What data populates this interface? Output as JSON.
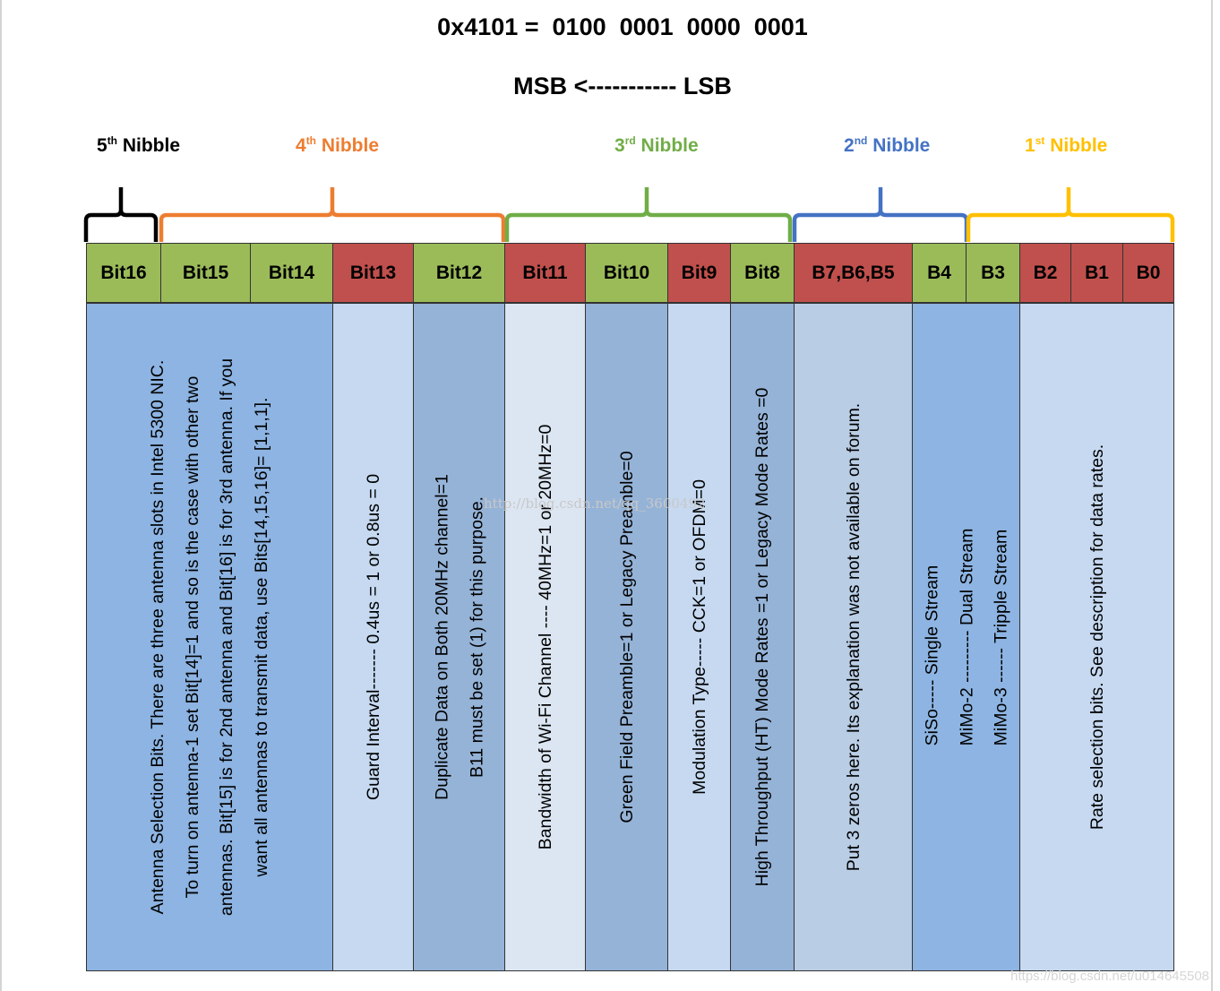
{
  "header": {
    "hex_line": "0x4101 =  0100  0001  0000  0001",
    "direction": "MSB <----------- LSB"
  },
  "nibbles": [
    {
      "ord": "5",
      "sup": "th",
      "word": " Nibble",
      "color": "#000000"
    },
    {
      "ord": "4",
      "sup": "th",
      "word": " Nibble",
      "color": "#ED7D31"
    },
    {
      "ord": "3",
      "sup": "rd",
      "word": " Nibble",
      "color": "#70AD47"
    },
    {
      "ord": "2",
      "sup": "nd",
      "word": " Nibble",
      "color": "#4472C4"
    },
    {
      "ord": "1",
      "sup": "st",
      "word": " Nibble",
      "color": "#FFC000"
    }
  ],
  "colors": {
    "header_green": "#9BBB59",
    "header_red": "#C0504D",
    "body_blue": "#8DB4E2",
    "body_light": "#C6D9F1",
    "body_mid": "#95B3D7",
    "body_pale": "#DCE6F2",
    "body_steel": "#B9CDE5"
  },
  "bits": [
    {
      "label": "Bit16",
      "fill": "green"
    },
    {
      "label": "Bit15",
      "fill": "green"
    },
    {
      "label": "Bit14",
      "fill": "green"
    },
    {
      "label": "Bit13",
      "fill": "red"
    },
    {
      "label": "Bit12",
      "fill": "green"
    },
    {
      "label": "Bit11",
      "fill": "red"
    },
    {
      "label": "Bit10",
      "fill": "green"
    },
    {
      "label": "Bit9",
      "fill": "red"
    },
    {
      "label": "Bit8",
      "fill": "green"
    },
    {
      "label": "B7,B6,B5",
      "fill": "red"
    },
    {
      "label": "B4",
      "fill": "green"
    },
    {
      "label": "B3",
      "fill": "green"
    },
    {
      "label": "B2",
      "fill": "red"
    },
    {
      "label": "B1",
      "fill": "red"
    },
    {
      "label": "B0",
      "fill": "red"
    }
  ],
  "descriptions": {
    "antenna": [
      "Antenna Selection Bits. There are three antenna slots in Intel 5300 NIC.",
      "To turn on antenna-1 set Bit[14]=1 and so is the case with other two",
      "antennas. Bit[15] is for 2nd antenna and Bit[16] is for 3rd antenna. If you",
      "want all antennas to transmit data, use Bits[14,15,16]= [1,1,1]."
    ],
    "guard": "Guard Interval-------    0.4us = 1  or     0.8us = 0",
    "duplicate": [
      "Duplicate Data on Both 20MHz channel=1",
      "B11 must be set (1) for this purpose."
    ],
    "bandwidth": "Bandwidth of Wi-Fi Channel ---- 40MHz=1 or  20MHz=0",
    "preamble": "Green Field Preamble=1   or Legacy Preamble=0",
    "modulation": "Modulation Type-----      CCK=1    or    OFDM=0",
    "throughput": "High Throughput (HT) Mode Rates =1    or   Legacy Mode Rates =0",
    "zeros": "Put 3 zeros here. Its explanation was not available on forum.",
    "streams": [
      "SiSo----- Single Stream",
      "MiMo-2  --------- Dual Stream",
      "MiMo-3   ------ Tripple Stream"
    ],
    "rate": "Rate selection bits. See description for data rates."
  },
  "watermarks": {
    "center": "http://blog.csdn.net/qq_3600492",
    "corner": "https://blog.csdn.net/u014645508"
  }
}
